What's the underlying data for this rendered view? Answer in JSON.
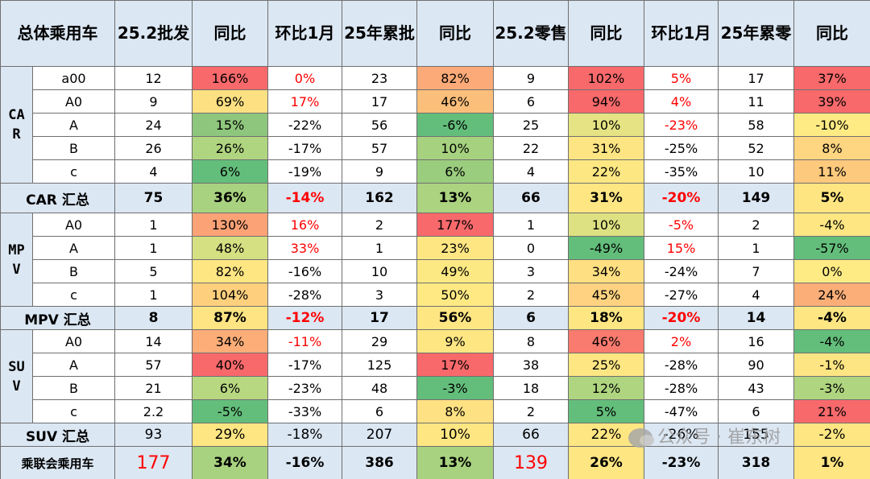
{
  "headers": [
    "总体乘用车",
    "25.2批发",
    "同比",
    "环比1月",
    "25年累批",
    "同比",
    "25.2零售",
    "同比",
    "环比1月",
    "25年累零",
    "同比"
  ],
  "groups": [
    {
      "label": "CAR",
      "rows": [
        {
          "seg": "a00",
          "cells": [
            "12",
            "166%",
            "0%",
            "23",
            "82%",
            "9",
            "102%",
            "5%",
            "17",
            "37%"
          ],
          "bg": [
            "#fff",
            "#f8696b",
            "#fff",
            "#fff",
            "#fcaa78",
            "#fff",
            "#f8696b",
            "#fff",
            "#fff",
            "#f8696b"
          ],
          "red": [
            false,
            false,
            true,
            false,
            false,
            false,
            false,
            true,
            false,
            false
          ]
        },
        {
          "seg": "A0",
          "cells": [
            "9",
            "69%",
            "17%",
            "17",
            "46%",
            "6",
            "94%",
            "4%",
            "11",
            "39%"
          ],
          "bg": [
            "#fff",
            "#fde082",
            "#fff",
            "#fff",
            "#fcbf7b",
            "#fff",
            "#f8696b",
            "#fff",
            "#fff",
            "#f8696b"
          ],
          "red": [
            false,
            false,
            true,
            false,
            false,
            false,
            false,
            true,
            false,
            false
          ]
        },
        {
          "seg": "A",
          "cells": [
            "24",
            "15%",
            "-22%",
            "56",
            "-6%",
            "25",
            "10%",
            "-23%",
            "58",
            "-10%"
          ],
          "bg": [
            "#fff",
            "#8ec67d",
            "#fff",
            "#fff",
            "#63be7b",
            "#fff",
            "#e5e383",
            "#fff",
            "#fff",
            "#ffeb84"
          ],
          "red": [
            false,
            false,
            false,
            false,
            false,
            false,
            false,
            true,
            false,
            false
          ]
        },
        {
          "seg": "B",
          "cells": [
            "26",
            "26%",
            "-17%",
            "57",
            "10%",
            "22",
            "31%",
            "-25%",
            "52",
            "8%"
          ],
          "bg": [
            "#fff",
            "#afd580",
            "#fff",
            "#fff",
            "#a6d17f",
            "#fff",
            "#fee583",
            "#fff",
            "#fff",
            "#fed580"
          ],
          "red": [
            false,
            false,
            false,
            false,
            false,
            false,
            false,
            false,
            false,
            false
          ]
        },
        {
          "seg": "c",
          "cells": [
            "4",
            "6%",
            "-19%",
            "9",
            "6%",
            "4",
            "22%",
            "-35%",
            "10",
            "11%"
          ],
          "bg": [
            "#fff",
            "#63be7b",
            "#fff",
            "#fff",
            "#9bcd7e",
            "#fff",
            "#fde783",
            "#fff",
            "#fff",
            "#fdc97d"
          ],
          "red": [
            false,
            false,
            false,
            false,
            false,
            false,
            false,
            false,
            false,
            false
          ]
        }
      ],
      "summary": {
        "label": "CAR 汇总",
        "cells": [
          "75",
          "36%",
          "-14%",
          "162",
          "13%",
          "66",
          "31%",
          "-20%",
          "149",
          "5%"
        ],
        "bg": [
          "#dbe7f3",
          "#a8d27f",
          "#dbe7f3",
          "#dbe7f3",
          "#abd380",
          "#dbe7f3",
          "#fee683",
          "#dbe7f3",
          "#dbe7f3",
          "#fee582"
        ],
        "red": [
          false,
          false,
          true,
          false,
          false,
          false,
          false,
          true,
          false,
          false
        ]
      }
    },
    {
      "label": "MPV",
      "rows": [
        {
          "seg": "A0",
          "cells": [
            "1",
            "130%",
            "16%",
            "2",
            "177%",
            "1",
            "10%",
            "-5%",
            "2",
            "-4%"
          ],
          "bg": [
            "#fff",
            "#fba276",
            "#fff",
            "#fff",
            "#f8696b",
            "#fff",
            "#dee182",
            "#fff",
            "#fff",
            "#fee683"
          ],
          "red": [
            false,
            false,
            true,
            false,
            false,
            false,
            false,
            true,
            false,
            false
          ]
        },
        {
          "seg": "A",
          "cells": [
            "1",
            "48%",
            "33%",
            "1",
            "23%",
            "0",
            "-49%",
            "15%",
            "1",
            "-57%"
          ],
          "bg": [
            "#fff",
            "#d5e082",
            "#fff",
            "#fff",
            "#fee683",
            "#fff",
            "#63be7b",
            "#fff",
            "#fff",
            "#63be7b"
          ],
          "red": [
            false,
            false,
            true,
            false,
            false,
            false,
            false,
            true,
            false,
            false
          ]
        },
        {
          "seg": "B",
          "cells": [
            "5",
            "82%",
            "-16%",
            "10",
            "49%",
            "3",
            "34%",
            "-24%",
            "7",
            "0%"
          ],
          "bg": [
            "#fff",
            "#fee683",
            "#fff",
            "#fff",
            "#fde983",
            "#fff",
            "#fedf81",
            "#fff",
            "#fff",
            "#ffeb84"
          ],
          "red": [
            false,
            false,
            false,
            false,
            false,
            false,
            false,
            false,
            false,
            false
          ]
        },
        {
          "seg": "c",
          "cells": [
            "1",
            "104%",
            "-28%",
            "3",
            "50%",
            "2",
            "45%",
            "-27%",
            "4",
            "24%"
          ],
          "bg": [
            "#fff",
            "#fed07e",
            "#fff",
            "#fff",
            "#fee983",
            "#fff",
            "#fed280",
            "#fff",
            "#fff",
            "#fbae78"
          ],
          "red": [
            false,
            false,
            false,
            false,
            false,
            false,
            false,
            false,
            false,
            false
          ]
        }
      ],
      "summary": {
        "label": "MPV 汇总",
        "cells": [
          "8",
          "87%",
          "-12%",
          "17",
          "56%",
          "6",
          "18%",
          "-20%",
          "14",
          "-4%"
        ],
        "bg": [
          "#dbe7f3",
          "#fee482",
          "#dbe7f3",
          "#dbe7f3",
          "#fee683",
          "#dbe7f3",
          "#fee683",
          "#dbe7f3",
          "#dbe7f3",
          "#fee683"
        ],
        "red": [
          false,
          false,
          true,
          false,
          false,
          false,
          false,
          true,
          false,
          false
        ]
      }
    },
    {
      "label": "SUV",
      "rows": [
        {
          "seg": "A0",
          "cells": [
            "14",
            "34%",
            "-11%",
            "29",
            "9%",
            "8",
            "46%",
            "2%",
            "16",
            "-4%"
          ],
          "bg": [
            "#fff",
            "#fcad78",
            "#fff",
            "#fff",
            "#fee683",
            "#fff",
            "#f97a6e",
            "#fff",
            "#fff",
            "#63be7b"
          ],
          "red": [
            false,
            false,
            true,
            false,
            false,
            false,
            false,
            true,
            false,
            false
          ]
        },
        {
          "seg": "A",
          "cells": [
            "57",
            "40%",
            "-17%",
            "125",
            "17%",
            "38",
            "25%",
            "-28%",
            "90",
            "-1%"
          ],
          "bg": [
            "#fff",
            "#f8696b",
            "#fff",
            "#fff",
            "#f8696b",
            "#fff",
            "#fee683",
            "#fff",
            "#fff",
            "#fee583"
          ],
          "red": [
            false,
            false,
            false,
            false,
            false,
            false,
            false,
            false,
            false,
            false
          ]
        },
        {
          "seg": "B",
          "cells": [
            "21",
            "6%",
            "-23%",
            "48",
            "-3%",
            "18",
            "12%",
            "-28%",
            "43",
            "-3%"
          ],
          "bg": [
            "#fff",
            "#b7d881",
            "#fff",
            "#fff",
            "#63be7b",
            "#fff",
            "#afd580",
            "#fff",
            "#fff",
            "#afd580"
          ],
          "red": [
            false,
            false,
            false,
            false,
            false,
            false,
            false,
            false,
            false,
            false
          ]
        },
        {
          "seg": "c",
          "cells": [
            "2.2",
            "-5%",
            "-33%",
            "6",
            "8%",
            "2",
            "5%",
            "-47%",
            "6",
            "21%"
          ],
          "bg": [
            "#fff",
            "#63be7b",
            "#fff",
            "#fff",
            "#fee182",
            "#fff",
            "#63be7b",
            "#fff",
            "#fff",
            "#f8696b"
          ],
          "red": [
            false,
            false,
            false,
            false,
            false,
            false,
            false,
            false,
            false,
            false
          ]
        }
      ],
      "summary": {
        "label": "SUV 汇总",
        "cells": [
          "93",
          "29%",
          "-18%",
          "207",
          "10%",
          "66",
          "22%",
          "-26%",
          "155",
          "-2%"
        ],
        "bg": [
          "#dbe7f3",
          "#fee683",
          "#dbe7f3",
          "#dbe7f3",
          "#fee683",
          "#dbe7f3",
          "#fee683",
          "#dbe7f3",
          "#dbe7f3",
          "#fee683"
        ],
        "red": [
          false,
          false,
          false,
          false,
          false,
          false,
          false,
          false,
          false,
          false
        ],
        "bold": false
      }
    }
  ],
  "total": {
    "label": "乘联会乘用车",
    "cells": [
      "177",
      "34%",
      "-16%",
      "386",
      "13%",
      "139",
      "26%",
      "-23%",
      "318",
      "1%"
    ],
    "bg": [
      "#dbe7f3",
      "#a8d27f",
      "#dbe7f3",
      "#dbe7f3",
      "#a8d27f",
      "#dbe7f3",
      "#fee683",
      "#dbe7f3",
      "#dbe7f3",
      "#fee683"
    ],
    "red": [
      true,
      false,
      false,
      false,
      false,
      true,
      false,
      false,
      false,
      false
    ],
    "big": [
      true,
      false,
      false,
      false,
      false,
      true,
      false,
      false,
      false,
      false
    ]
  },
  "watermark": "公众号 · 崔东树"
}
